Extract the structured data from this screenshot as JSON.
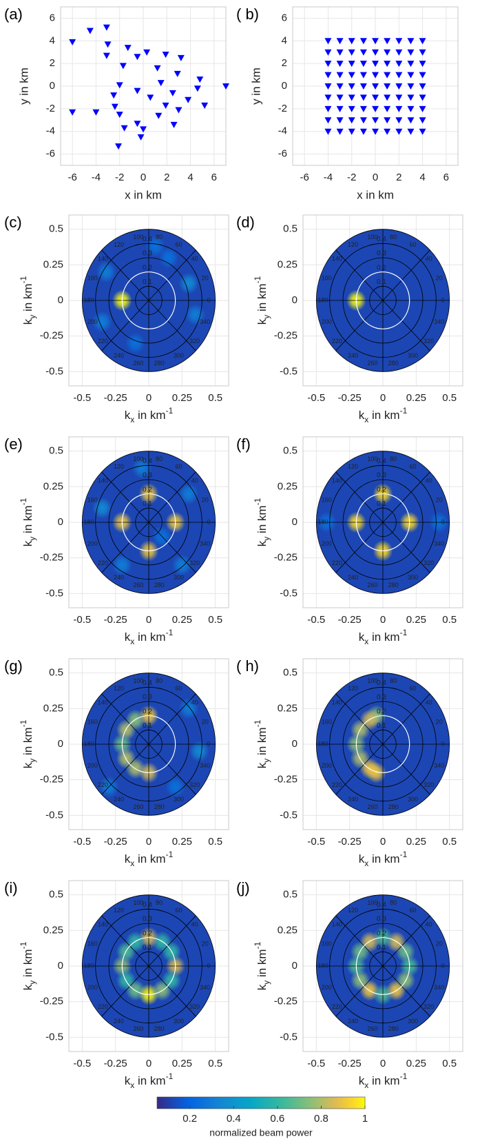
{
  "chart_data": [
    {
      "type": "scatter",
      "label": "(a)",
      "color": "#0000ff",
      "grid": true,
      "x": [
        -6,
        -4.5,
        -3.1,
        -3,
        -3.1,
        -1.3,
        -0.5,
        -1.7,
        0.3,
        1.9,
        3.2,
        1.2,
        2.9,
        -2,
        -0.5,
        1.5,
        4.8,
        7,
        -2.5,
        0.6,
        2.5,
        3.8,
        4.6,
        -2.4,
        -6,
        -4,
        -2,
        1.9,
        3,
        5.2,
        1.3,
        2.6,
        -0.5,
        0,
        -1.6,
        -0.2,
        -2.1
      ],
      "y": [
        3.9,
        4.9,
        5.2,
        3.7,
        2.7,
        3.4,
        2.6,
        1.8,
        3,
        2.8,
        2.5,
        1.6,
        1.1,
        0.1,
        -0.4,
        0.3,
        0.6,
        0,
        -0.8,
        -1,
        -0.6,
        -1.2,
        -0.2,
        -1.8,
        -2.3,
        -2.3,
        -2.5,
        -1.7,
        -2.1,
        -1.7,
        -2.6,
        -3.4,
        -3.3,
        -3.8,
        -3.7,
        -4.5,
        -5.3
      ],
      "xlim": [
        -7,
        7
      ],
      "ylim": [
        -7,
        7
      ],
      "xticks": [
        -6,
        -4,
        -2,
        0,
        2,
        4,
        6
      ],
      "yticks": [
        -6,
        -4,
        -2,
        0,
        2,
        4,
        6
      ],
      "xlabel": "x in km",
      "ylabel": "y in km"
    },
    {
      "type": "scatter",
      "label": "( b)",
      "color": "#0000ff",
      "grid": true,
      "x": [
        -4,
        -3,
        -2,
        -1,
        0,
        1,
        2,
        3,
        4,
        -4,
        -3,
        -2,
        -1,
        0,
        1,
        2,
        3,
        4,
        -4,
        -3,
        -2,
        -1,
        0,
        1,
        2,
        3,
        4,
        -4,
        -3,
        -2,
        -1,
        0,
        1,
        2,
        3,
        4,
        -4,
        -3,
        -2,
        -1,
        0,
        1,
        2,
        3,
        4,
        -4,
        -3,
        -2,
        -1,
        0,
        1,
        2,
        3,
        4,
        -4,
        -3,
        -2,
        -1,
        0,
        1,
        2,
        3,
        4,
        -4,
        -3,
        -2,
        -1,
        0,
        1,
        2,
        3,
        4,
        -4,
        -3,
        -2,
        -1,
        0,
        1,
        2,
        3,
        4
      ],
      "y": [
        4,
        4,
        4,
        4,
        4,
        4,
        4,
        4,
        4,
        3,
        3,
        3,
        3,
        3,
        3,
        3,
        3,
        3,
        2,
        2,
        2,
        2,
        2,
        2,
        2,
        2,
        2,
        1,
        1,
        1,
        1,
        1,
        1,
        1,
        1,
        1,
        0,
        0,
        0,
        0,
        0,
        0,
        0,
        0,
        0,
        -1,
        -1,
        -1,
        -1,
        -1,
        -1,
        -1,
        -1,
        -1,
        -2,
        -2,
        -2,
        -2,
        -2,
        -2,
        -2,
        -2,
        -2,
        -3,
        -3,
        -3,
        -3,
        -3,
        -3,
        -3,
        -3,
        -3,
        -4,
        -4,
        -4,
        -4,
        -4,
        -4,
        -4,
        -4,
        -4
      ],
      "xlim": [
        -7,
        7
      ],
      "ylim": [
        -7,
        7
      ],
      "xticks": [
        -6,
        -4,
        -2,
        0,
        2,
        4,
        6
      ],
      "yticks": [
        -6,
        -4,
        -2,
        0,
        2,
        4,
        6
      ],
      "xlabel": "x in km",
      "ylabel": "y in km"
    },
    {
      "type": "polar-heatmap",
      "label": "(c)",
      "kx": [
        -0.2,
        -0.32,
        0.3,
        0.35,
        -0.1,
        0.15,
        -0.35,
        0.05
      ],
      "ky": [
        0,
        0.2,
        0.12,
        -0.1,
        -0.3,
        0.3,
        -0.15,
        0.38
      ],
      "power": [
        1,
        0.3,
        0.35,
        0.3,
        0.25,
        0.25,
        0.3,
        0.25
      ]
    },
    {
      "type": "polar-heatmap",
      "label": "(d)",
      "kx": [
        -0.2
      ],
      "ky": [
        0
      ],
      "power": [
        1
      ]
    },
    {
      "type": "polar-heatmap",
      "label": "(e)",
      "kx": [
        -0.2,
        0.2,
        0,
        0,
        -0.35,
        0.3,
        -0.2,
        0.25,
        -0.05,
        0.1
      ],
      "ky": [
        0,
        0,
        0.2,
        -0.2,
        0.1,
        0.2,
        -0.3,
        -0.3,
        0.38,
        -0.1
      ],
      "power": [
        0.9,
        0.9,
        0.9,
        0.9,
        0.35,
        0.3,
        0.3,
        0.3,
        0.3,
        0.25
      ]
    },
    {
      "type": "polar-heatmap",
      "label": "(f)",
      "kx": [
        -0.2,
        0.2,
        0,
        0,
        0.42,
        -0.42
      ],
      "ky": [
        0,
        0,
        0.2,
        -0.2,
        0,
        0
      ],
      "power": [
        0.95,
        0.95,
        0.95,
        0.95,
        0.25,
        0.25
      ]
    },
    {
      "type": "polar-heatmap",
      "label": "(g)",
      "kx": [
        0,
        -0.1,
        -0.17,
        -0.2,
        -0.17,
        -0.1,
        0,
        0.38,
        0.3,
        -0.3,
        0.2
      ],
      "ky": [
        0.2,
        0.17,
        0.1,
        0,
        -0.1,
        -0.17,
        -0.2,
        -0.05,
        0.25,
        -0.3,
        -0.3
      ],
      "power": [
        0.9,
        0.75,
        0.8,
        0.7,
        0.8,
        0.8,
        0.85,
        0.35,
        0.3,
        0.3,
        0.25
      ]
    },
    {
      "type": "polar-heatmap",
      "label": "( h)",
      "kx": [
        -0.05,
        -0.1,
        -0.17,
        -0.2,
        -0.17,
        -0.1,
        -0.05
      ],
      "ky": [
        0.2,
        0.17,
        0.1,
        0,
        -0.1,
        -0.17,
        -0.2
      ],
      "power": [
        0.75,
        0.85,
        0.8,
        0.75,
        0.8,
        0.9,
        0.9
      ]
    },
    {
      "type": "polar-heatmap",
      "label": "(i)",
      "kx": [
        0.2,
        0.17,
        0.1,
        0,
        -0.1,
        -0.17,
        -0.2,
        -0.17,
        -0.1,
        0,
        0.1,
        0.17
      ],
      "ky": [
        0,
        0.1,
        0.17,
        0.2,
        0.17,
        0.1,
        0,
        -0.1,
        -0.17,
        -0.2,
        -0.17,
        -0.1
      ],
      "power": [
        0.85,
        0.6,
        0.6,
        0.85,
        0.6,
        0.65,
        0.75,
        0.6,
        0.7,
        1,
        0.75,
        0.6
      ]
    },
    {
      "type": "polar-heatmap",
      "label": "(j)",
      "kx": [
        0.2,
        0.17,
        0.1,
        0,
        -0.1,
        -0.17,
        -0.2,
        -0.17,
        -0.1,
        0,
        0.1,
        0.17
      ],
      "ky": [
        0,
        0.1,
        0.17,
        0.2,
        0.17,
        0.1,
        0,
        -0.1,
        -0.17,
        -0.2,
        -0.17,
        -0.1
      ],
      "power": [
        0.65,
        0.7,
        0.85,
        0.65,
        0.85,
        0.7,
        0.65,
        0.75,
        0.9,
        0.65,
        0.9,
        0.75
      ]
    },
    {
      "type": "colorbar",
      "clim": [
        0.05,
        1
      ],
      "ticks": [
        0.2,
        0.4,
        0.6,
        0.8,
        1
      ],
      "label": "normalized beam power"
    }
  ],
  "polar_axes": {
    "xlim": [
      -0.6,
      0.6
    ],
    "ylim": [
      -0.6,
      0.6
    ],
    "xticks": [
      -0.5,
      -0.25,
      0,
      0.25,
      0.5
    ],
    "yticks": [
      -0.5,
      -0.25,
      0,
      0.25,
      0.5
    ],
    "rlim": 0.5,
    "rticks": [
      0.1,
      0.2,
      0.3,
      0.4
    ],
    "theta_ticks": [
      0,
      20,
      40,
      60,
      80,
      100,
      120,
      140,
      160,
      180,
      200,
      220,
      240,
      260,
      280,
      300,
      320,
      340
    ],
    "reference_k": 0.2,
    "background_power": 0.12,
    "xlabel": {
      "base": "k",
      "sub": "x",
      "rest": " in km",
      "sup": "-1"
    },
    "ylabel": {
      "base": "k",
      "sub": "y",
      "rest": " in km",
      "sup": "-1"
    }
  }
}
